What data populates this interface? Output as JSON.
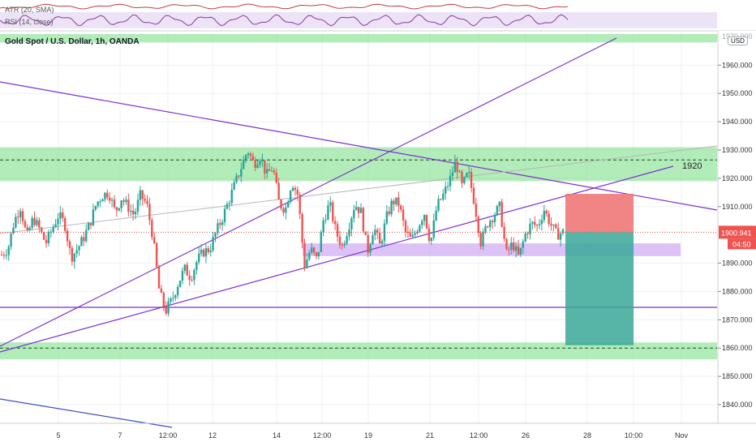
{
  "indicators": {
    "atr_label": "ATR (20, SMA)",
    "rsi_label": "RSI (14, close)",
    "top_partial_value": "1970.000"
  },
  "symbol": {
    "title": "Gold Spot / U.S. Dollar, 1h, OANDA",
    "currency": "USD"
  },
  "price_box": {
    "price": "1900.941",
    "countdown": "04:50"
  },
  "annotation": "1920",
  "chart_data": {
    "type": "candlestick",
    "title": "Gold Spot / U.S. Dollar, 1h, OANDA",
    "y_axis_ticks": [
      1960,
      1950,
      1940,
      1930,
      1920,
      1910,
      1890,
      1880,
      1870,
      1860,
      1850,
      1840
    ],
    "y_axis_labels": [
      "1960.000",
      "1950.000",
      "1940.000",
      "1930.000",
      "1920.000",
      "1910.000",
      "1890.000",
      "1880.000",
      "1870.000",
      "1860.000",
      "1850.000",
      "1840.000"
    ],
    "x_axis_labels": [
      "5",
      "7",
      "12:00",
      "12",
      "14",
      "12:00",
      "19",
      "21",
      "12:00",
      "26",
      "28",
      "10:00",
      "Nov"
    ],
    "ylim": [
      1835,
      1972
    ],
    "current_price": 1900.941,
    "zones": [
      {
        "name": "resistance-top",
        "from": 1968,
        "to": 1971,
        "color": "#7fe08a"
      },
      {
        "name": "resistance",
        "from": 1919,
        "to": 1931,
        "color": "#7fe08a"
      },
      {
        "name": "support-purple",
        "from": 1892.5,
        "to": 1897,
        "color": "#c59af0"
      },
      {
        "name": "support-bottom",
        "from": 1856,
        "to": 1862,
        "color": "#7fe08a"
      }
    ],
    "dashed_levels": [
      1926.5,
      1860
    ],
    "short_position": {
      "entry": 1901,
      "stop": 1914.5,
      "target": 1861
    },
    "close_path": [
      1893,
      1895,
      1905,
      1910,
      1899,
      1906,
      1902,
      1897,
      1902,
      1907,
      1904,
      1892,
      1895,
      1899,
      1904,
      1911,
      1914,
      1915,
      1908,
      1913,
      1910,
      1907,
      1914,
      1911,
      1899,
      1880,
      1873,
      1877,
      1883,
      1888,
      1885,
      1891,
      1894,
      1895,
      1901,
      1906,
      1912,
      1918,
      1924,
      1930,
      1925,
      1928,
      1921,
      1924,
      1911,
      1909,
      1919,
      1914,
      1889,
      1895,
      1891,
      1905,
      1911,
      1901,
      1896,
      1903,
      1911,
      1908,
      1894,
      1903,
      1896,
      1906,
      1912,
      1911,
      1901,
      1898,
      1903,
      1908,
      1897,
      1910,
      1914,
      1919,
      1926,
      1917,
      1922,
      1911,
      1897,
      1904,
      1907,
      1910,
      1893,
      1897,
      1892,
      1900,
      1904,
      1903,
      1909,
      1904,
      1900,
      1901
    ]
  }
}
